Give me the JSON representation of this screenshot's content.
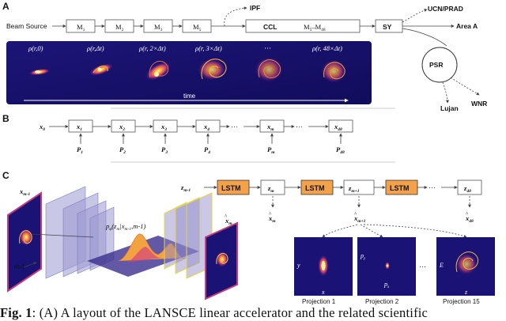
{
  "panel_a": {
    "label": "A",
    "beam_source": "Beam Source",
    "modules": [
      {
        "main": "M",
        "sub": "1"
      },
      {
        "main": "M",
        "sub": "2"
      },
      {
        "main": "M",
        "sub": "3"
      },
      {
        "main": "M",
        "sub": "5"
      }
    ],
    "ccl": "CCL",
    "ccl_range": "M",
    "ccl_range_sub1": "5",
    "ccl_range_mid": "–M",
    "ccl_range_sub2": "48",
    "ipf": "IPF",
    "sy": "SY",
    "ucn": "UCN/PRAD",
    "area_a": "Area A",
    "psr": "PSR",
    "wnr": "WNR",
    "lujan": "Lujan",
    "snapshots": [
      "ρ(r,0)",
      "ρ(r,Δt)",
      "ρ(r, 2×Δt)",
      "ρ(r, 3×Δt)",
      "···",
      "ρ(r, 48×Δt)"
    ],
    "time_label": "time"
  },
  "panel_b": {
    "label": "B",
    "x0": "x",
    "x0_sub": "0",
    "nodes": [
      {
        "x": "x",
        "sub": "1",
        "p": "P",
        "psub": "1"
      },
      {
        "x": "x",
        "sub": "2",
        "p": "P",
        "psub": "2"
      },
      {
        "x": "x",
        "sub": "3",
        "p": "P",
        "psub": "3"
      },
      {
        "x": "x",
        "sub": "4",
        "p": "P",
        "psub": "4"
      },
      {
        "x": "x",
        "sub": "m",
        "p": "P",
        "psub": "m"
      },
      {
        "x": "x",
        "sub": "48",
        "p": "P",
        "psub": "48"
      }
    ],
    "dots": "···"
  },
  "panel_c": {
    "label": "C",
    "x_input": "x",
    "x_input_sub": "m-1",
    "m1_label": "m-1",
    "z_input": "z",
    "z_input_sub": "m-1",
    "lstm": "LSTM",
    "z_nodes": [
      {
        "main": "z",
        "sub": "m"
      },
      {
        "main": "z",
        "sub": "m+1"
      },
      {
        "main": "z",
        "sub": "48"
      }
    ],
    "xhat_nodes": [
      {
        "main": "x",
        "sub": "m"
      },
      {
        "main": "x",
        "sub": "m+1"
      },
      {
        "main": "x",
        "sub": "48"
      }
    ],
    "posterior": "p",
    "posterior_sub": "φ",
    "posterior_rest": "(z",
    "posterior_rest_sub": "m",
    "posterior_tail": "|x",
    "posterior_tail_sub": "m-1",
    "posterior_end": ",m-1)",
    "dots": "···",
    "projections": [
      {
        "label": "Projection 1",
        "xaxis": "x",
        "yaxis": "y"
      },
      {
        "label": "Projection 2",
        "xaxis": "p",
        "xaxis_sub": "x",
        "yaxis": "p",
        "yaxis_sub": "y"
      },
      {
        "label": "Projection 15",
        "xaxis": "z",
        "yaxis": "E"
      }
    ]
  },
  "caption": {
    "bold": "Fig. 1",
    "text": ": (A) A layout of the LANSCE linear accelerator and the related scientific"
  },
  "colors": {
    "plasma_dark": "#160f6e",
    "plasma_mid": "#b5367a",
    "plasma_bright": "#f9dc24",
    "lstm_orange": "#f3a24a",
    "plane_purple": "#8b86c9"
  }
}
